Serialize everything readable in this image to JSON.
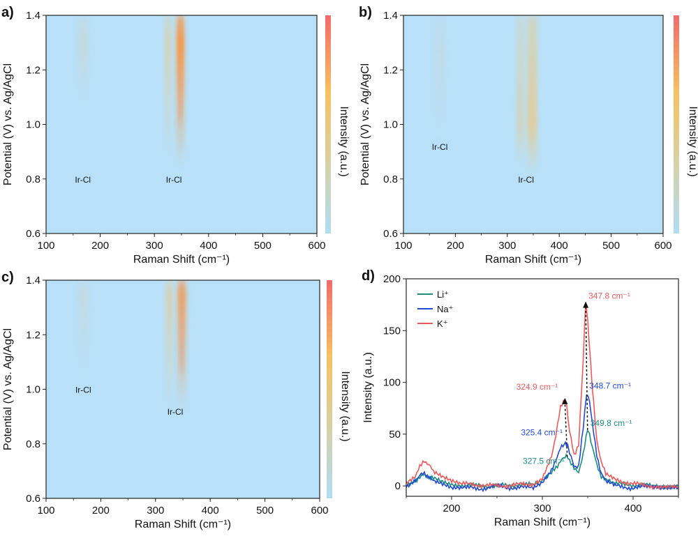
{
  "figure": {
    "colorbar_label": "Intensity (a.u.)",
    "colorbar_colors": [
      "#f46a6a",
      "#f8c060",
      "#d8d0a0",
      "#b0dcf4"
    ],
    "background_color": "#b8e0f8"
  },
  "chart_data": [
    {
      "panel_label": "a)",
      "type": "heatmap",
      "xlabel": "Raman Shift (cm⁻¹)",
      "ylabel": "Potential (V) vs. Ag/AgCl",
      "xlim": [
        100,
        600
      ],
      "ylim": [
        0.6,
        1.4
      ],
      "xticks": [
        "100",
        "200",
        "300",
        "400",
        "500",
        "600"
      ],
      "yticks": [
        "0.6",
        "0.8",
        "1.0",
        "1.2",
        "1.4"
      ],
      "colorbar_label": "Intensity (a.u.)",
      "bands": [
        {
          "center": 168,
          "width": 11,
          "ymin": 1.08,
          "ymax": 1.4,
          "peak_y": 1.3,
          "max_intensity": 0.22
        },
        {
          "center": 325,
          "width": 6,
          "ymin": 0.88,
          "ymax": 1.4,
          "peak_y": 1.3,
          "max_intensity": 0.45
        },
        {
          "center": 348,
          "width": 8,
          "ymin": 0.85,
          "ymax": 1.4,
          "peak_y": 1.3,
          "max_intensity": 0.95
        }
      ],
      "annotations": [
        {
          "text": "Ir-Cl",
          "x": 168,
          "y": 0.8
        },
        {
          "text": "Ir-Cl",
          "x": 336,
          "y": 0.8
        }
      ]
    },
    {
      "panel_label": "b)",
      "type": "heatmap",
      "xlabel": "Raman Shift (cm⁻¹)",
      "ylabel": "Potential (V) vs. Ag/AgCl",
      "xlim": [
        100,
        600
      ],
      "ylim": [
        0.6,
        1.4
      ],
      "xticks": [
        "100",
        "200",
        "300",
        "400",
        "500",
        "600"
      ],
      "yticks": [
        "0.6",
        "0.8",
        "1.0",
        "1.2",
        "1.4"
      ],
      "colorbar_label": "Intensity (a.u.)",
      "bands": [
        {
          "center": 170,
          "width": 12,
          "ymin": 0.95,
          "ymax": 1.4,
          "peak_y": 1.25,
          "max_intensity": 0.12
        },
        {
          "center": 325,
          "width": 8,
          "ymin": 0.85,
          "ymax": 1.4,
          "peak_y": 1.0,
          "max_intensity": 0.35
        },
        {
          "center": 348,
          "width": 10,
          "ymin": 0.82,
          "ymax": 1.4,
          "peak_y": 1.0,
          "max_intensity": 0.6
        }
      ],
      "annotations": [
        {
          "text": "Ir-Cl",
          "x": 170,
          "y": 0.92
        },
        {
          "text": "Ir-Cl",
          "x": 336,
          "y": 0.8
        }
      ]
    },
    {
      "panel_label": "c)",
      "type": "heatmap",
      "xlabel": "Raman Shift (cm⁻¹)",
      "ylabel": "Potential (V) vs. Ag/AgCl",
      "xlim": [
        100,
        600
      ],
      "ylim": [
        0.6,
        1.4
      ],
      "xticks": [
        "100",
        "200",
        "300",
        "400",
        "500",
        "600"
      ],
      "yticks": [
        "0.6",
        "0.8",
        "1.0",
        "1.2",
        "1.4"
      ],
      "colorbar_label": "Intensity (a.u.)",
      "bands": [
        {
          "center": 168,
          "width": 11,
          "ymin": 1.05,
          "ymax": 1.4,
          "peak_y": 1.35,
          "max_intensity": 0.18
        },
        {
          "center": 325,
          "width": 7,
          "ymin": 0.92,
          "ymax": 1.4,
          "peak_y": 1.35,
          "max_intensity": 0.45
        },
        {
          "center": 348,
          "width": 9,
          "ymin": 0.92,
          "ymax": 1.4,
          "peak_y": 1.35,
          "max_intensity": 0.7
        }
      ],
      "annotations": [
        {
          "text": "Ir-Cl",
          "x": 168,
          "y": 1.0
        },
        {
          "text": "Ir-Cl",
          "x": 336,
          "y": 0.92
        }
      ]
    },
    {
      "panel_label": "d)",
      "type": "line",
      "xlabel": "Raman Shift (cm⁻¹)",
      "ylabel": "Intensity (a.u.)",
      "xlim": [
        150,
        450
      ],
      "ylim": [
        -10,
        200
      ],
      "xticks": [
        "200",
        "300",
        "400"
      ],
      "yticks": [
        "0",
        "50",
        "100",
        "150",
        "200"
      ],
      "legend_position": "top-left",
      "series": [
        {
          "name": "Li⁺",
          "color": "#1a8f80",
          "x": [
            150,
            160,
            165,
            170,
            175,
            180,
            190,
            200,
            210,
            230,
            250,
            270,
            290,
            300,
            310,
            315,
            320,
            325,
            327.5,
            330,
            335,
            340,
            345,
            349.8,
            352,
            355,
            360,
            365,
            370,
            380,
            400,
            420,
            450
          ],
          "y": [
            1,
            5,
            9,
            10,
            9,
            7,
            4,
            2,
            1,
            0,
            0,
            1,
            1,
            4,
            12,
            18,
            24,
            27,
            28,
            25,
            16,
            14,
            30,
            54,
            50,
            38,
            20,
            10,
            5,
            2,
            1,
            0,
            0
          ]
        },
        {
          "name": "Na⁺",
          "color": "#2148d8",
          "x": [
            150,
            160,
            165,
            170,
            175,
            180,
            190,
            200,
            210,
            230,
            250,
            270,
            290,
            300,
            310,
            315,
            320,
            325.4,
            328,
            330,
            335,
            340,
            345,
            348.7,
            352,
            355,
            360,
            365,
            370,
            380,
            400,
            420,
            450
          ],
          "y": [
            0,
            6,
            10,
            12,
            9,
            4,
            1,
            -2,
            -1,
            -3,
            0,
            -2,
            -1,
            3,
            14,
            26,
            36,
            42,
            40,
            32,
            18,
            20,
            55,
            90,
            82,
            60,
            30,
            12,
            4,
            0,
            -2,
            0,
            -2
          ]
        },
        {
          "name": "K⁺",
          "color": "#f05858",
          "x": [
            150,
            160,
            165,
            170,
            175,
            180,
            190,
            200,
            210,
            230,
            250,
            270,
            290,
            300,
            310,
            315,
            320,
            324.9,
            327,
            330,
            335,
            340,
            345,
            347.8,
            350,
            355,
            360,
            365,
            370,
            380,
            400,
            420,
            450
          ],
          "y": [
            3,
            10,
            18,
            25,
            20,
            14,
            8,
            4,
            2,
            1,
            0,
            1,
            2,
            8,
            28,
            50,
            75,
            85,
            75,
            52,
            30,
            40,
            120,
            178,
            160,
            95,
            45,
            22,
            12,
            6,
            2,
            0,
            -2
          ]
        }
      ],
      "peak_labels": [
        {
          "text": "347.8 cm⁻¹",
          "x": 347.8,
          "y": 178,
          "series": "K⁺"
        },
        {
          "text": "324.9 cm⁻¹",
          "x": 324.9,
          "y": 85,
          "series": "K⁺"
        },
        {
          "text": "348.7 cm⁻¹",
          "x": 348.7,
          "y": 90,
          "series": "Na⁺"
        },
        {
          "text": "325.4 cm⁻¹",
          "x": 325.4,
          "y": 42,
          "series": "Na⁺"
        },
        {
          "text": "349.8 cm⁻¹",
          "x": 349.8,
          "y": 54,
          "series": "Li⁺"
        },
        {
          "text": "327.5 cm⁻¹",
          "x": 327.5,
          "y": 28,
          "series": "Li⁺"
        }
      ]
    }
  ]
}
